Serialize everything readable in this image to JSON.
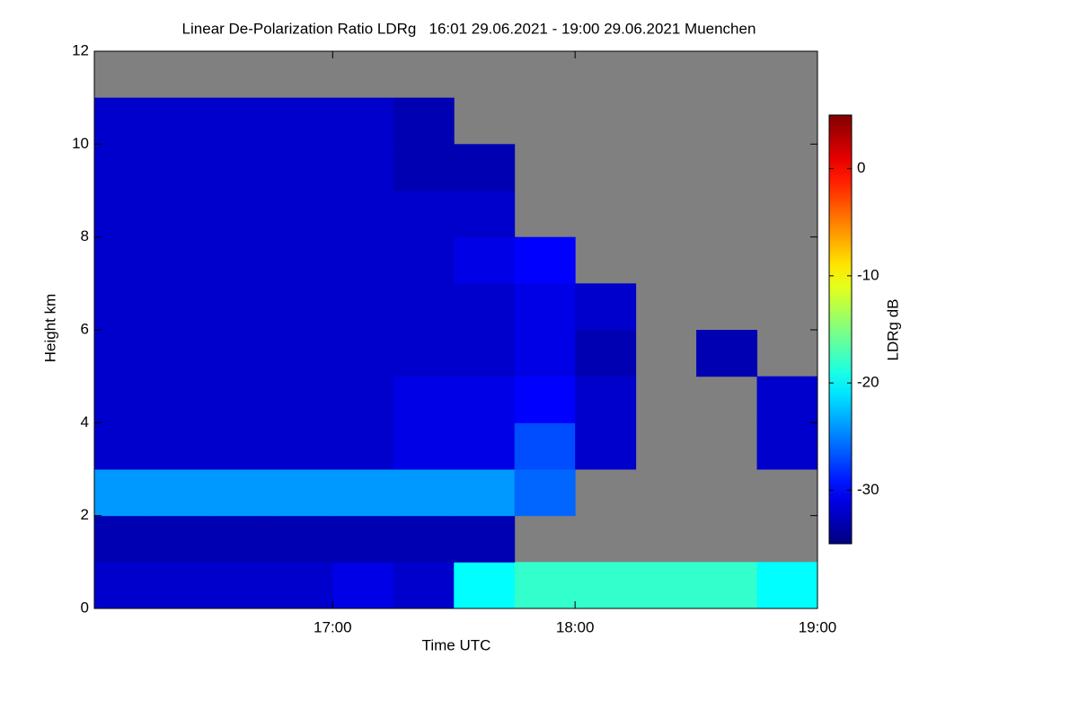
{
  "chart_data": {
    "type": "heatmap",
    "title": "Linear De-Polarization Ratio LDRg   16:01 29.06.2021 - 19:00 29.06.2021 Muenchen",
    "x_label": "Time UTC",
    "y_label": "Height km",
    "colorbar_label": "LDRg dB",
    "colormap": "jet",
    "background_color": "#808080",
    "xlim": [
      16.0167,
      19.0
    ],
    "ylim": [
      0,
      12
    ],
    "clim": [
      -35,
      5
    ],
    "xticks": [
      {
        "value": 17,
        "label": "17:00"
      },
      {
        "value": 18,
        "label": "18:00"
      },
      {
        "value": 19,
        "label": "19:00"
      }
    ],
    "yticks": [
      0,
      2,
      4,
      6,
      8,
      10,
      12
    ],
    "cticks": [
      -30,
      -20,
      -10,
      0
    ],
    "xbins": [
      16.0167,
      16.25,
      16.5,
      16.75,
      17.0,
      17.25,
      17.5,
      17.75,
      18.0,
      18.25,
      18.5,
      18.75,
      19.0
    ],
    "ybins": [
      0,
      1,
      2,
      3,
      4,
      5,
      6,
      7,
      8,
      9,
      10,
      11,
      12
    ],
    "z": [
      [
        -32,
        -32,
        -32,
        -32,
        -31,
        -32,
        -20,
        -18,
        -18,
        -18,
        -18,
        -20
      ],
      [
        -33,
        -33,
        -33,
        -33,
        -33,
        -33,
        -33,
        null,
        null,
        null,
        null,
        null
      ],
      [
        -24,
        -24,
        -24,
        -24,
        -24,
        -24,
        -24,
        -26,
        null,
        null,
        null,
        null
      ],
      [
        -32,
        -32,
        -32,
        -32,
        -32,
        -31,
        -31,
        -27,
        -32,
        null,
        null,
        -32
      ],
      [
        -32,
        -32,
        -32,
        -32,
        -32,
        -31,
        -31,
        -30,
        -32,
        null,
        null,
        -32
      ],
      [
        -32,
        -32,
        -32,
        -32,
        -32,
        -32,
        -32,
        -31,
        -33,
        null,
        -33,
        null
      ],
      [
        -32,
        -32,
        -32,
        -32,
        -32,
        -32,
        -32,
        -31,
        -32,
        null,
        null,
        null
      ],
      [
        -32,
        -32,
        -32,
        -32,
        -32,
        -32,
        -31,
        -30,
        null,
        null,
        null,
        null
      ],
      [
        -32,
        -32,
        -32,
        -32,
        -32,
        -32,
        -32,
        null,
        null,
        null,
        null,
        null
      ],
      [
        -32,
        -32,
        -32,
        -32,
        -32,
        -33,
        -33,
        null,
        null,
        null,
        null,
        null
      ],
      [
        -32,
        -32,
        -32,
        -32,
        -32,
        -33,
        null,
        null,
        null,
        null,
        null,
        null
      ],
      [
        null,
        null,
        null,
        null,
        null,
        null,
        null,
        null,
        null,
        null,
        null,
        null
      ]
    ]
  }
}
